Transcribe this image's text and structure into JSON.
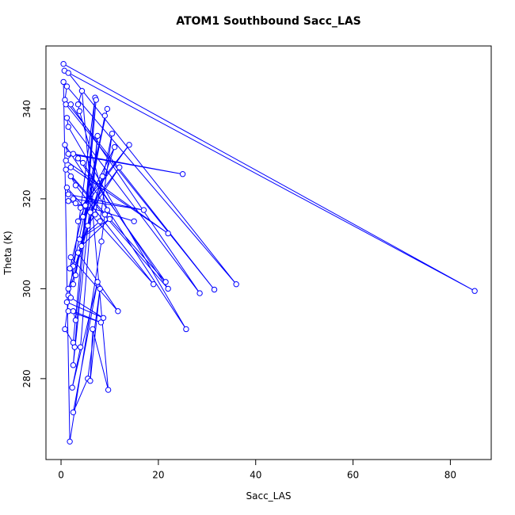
{
  "chart_data": {
    "type": "scatter",
    "title": "ATOM1 Southbound Sacc_LAS",
    "x_label": "Sacc_LAS",
    "y_label": "Theta (K)",
    "x": [
      0.5,
      85,
      0.7,
      1.5,
      36,
      1.2,
      0.8,
      31.5,
      1.0,
      2.0,
      28.5,
      1.2,
      1.5,
      25.7,
      0.8,
      1.5,
      25,
      2.5,
      1.0,
      22,
      2.0,
      1.0,
      21.5,
      3.5,
      4.5,
      22,
      2.0,
      3.0,
      19,
      1.2,
      1.5,
      17,
      2.5,
      1.5,
      15,
      3.0,
      4.0,
      14,
      5.0,
      6.0,
      12,
      4.5,
      3.5,
      11,
      5.5,
      7.0,
      10.5,
      8.0,
      3.8,
      10,
      4.2,
      3.5,
      11.7,
      2.0,
      2.5,
      9.5,
      1.8,
      3.0,
      9,
      2.5,
      1.5,
      8.5,
      1.5,
      2.0,
      8.7,
      1.2,
      1.5,
      8.2,
      2.5,
      3.0,
      7.0,
      0.8,
      2.5,
      7.2,
      2.8,
      2.5,
      7.5,
      4.0,
      2.3,
      7.5,
      2.5,
      5.5,
      8.0,
      6.0,
      6.5,
      9.7,
      4.3,
      3.5,
      3.8,
      9.5,
      9.0,
      8.3,
      1.8,
      0.5
    ],
    "series": [
      {
        "color": "#0000ff",
        "values": [
          350,
          299.5,
          348.5,
          348,
          301,
          345,
          342,
          299.8,
          341,
          341,
          299,
          338,
          336,
          291,
          332,
          330,
          325.5,
          330,
          328.5,
          312.3,
          327,
          326.5,
          301.5,
          329,
          328,
          300,
          325,
          323,
          301,
          322.5,
          321,
          317.5,
          320,
          319.5,
          315,
          319,
          318,
          332,
          318.5,
          317,
          327,
          316,
          315,
          331.5,
          314,
          316.5,
          334.5,
          315,
          311,
          315.5,
          309.5,
          308,
          295,
          307,
          305,
          340,
          304.5,
          303,
          338.5,
          301,
          300,
          325,
          298.5,
          298,
          293.5,
          297,
          295,
          292.5,
          295,
          293,
          342.5,
          291,
          288,
          342,
          287,
          283,
          334,
          287,
          278,
          301.5,
          272.5,
          280,
          300,
          279.5,
          291,
          277.5,
          344,
          341,
          339.5,
          317.5,
          316.5,
          310.5,
          266,
          346
        ]
      }
    ],
    "xlim": [
      -3.1,
      88.4
    ],
    "ylim": [
      262,
      354
    ],
    "xticks": [
      0,
      20,
      40,
      60,
      80
    ],
    "yticks": [
      280,
      300,
      320,
      340
    ]
  }
}
